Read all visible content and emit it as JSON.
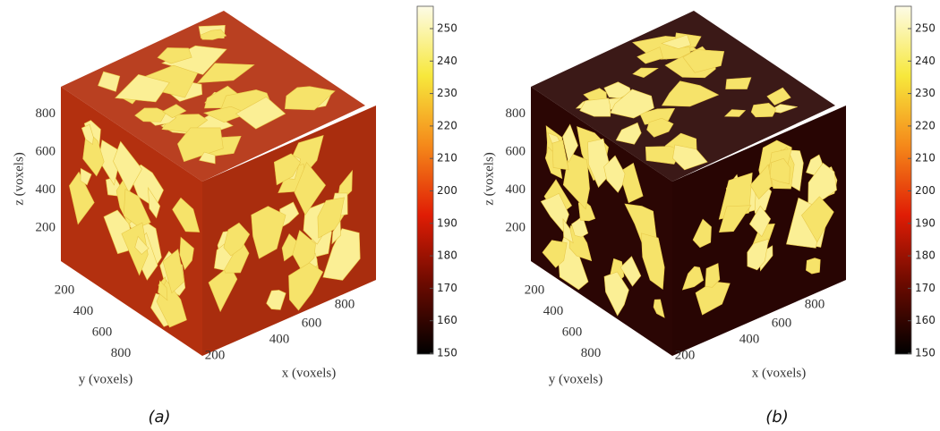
{
  "panels": [
    {
      "caption": "(a)",
      "matrix_color": "#b3300f",
      "z_axis": {
        "label": "z (voxels)",
        "ticks": [
          200,
          400,
          600,
          800
        ]
      },
      "y_axis": {
        "label": "y (voxels)",
        "ticks": [
          200,
          400,
          600,
          800
        ]
      },
      "x_axis": {
        "label": "x (voxels)",
        "ticks": [
          200,
          400,
          600,
          800
        ]
      },
      "colorbar": {
        "ticks": [
          150,
          160,
          170,
          180,
          190,
          200,
          210,
          220,
          230,
          240,
          250
        ]
      }
    },
    {
      "caption": "(b)",
      "matrix_color": "#2b0604",
      "z_axis": {
        "label": "z (voxels)",
        "ticks": [
          200,
          400,
          600,
          800
        ]
      },
      "y_axis": {
        "label": "y (voxels)",
        "ticks": [
          200,
          400,
          600,
          800
        ]
      },
      "x_axis": {
        "label": "x (voxels)",
        "ticks": [
          200,
          400,
          600,
          800
        ]
      },
      "colorbar": {
        "ticks": [
          150,
          160,
          170,
          180,
          190,
          200,
          210,
          220,
          230,
          240,
          250
        ]
      }
    }
  ]
}
